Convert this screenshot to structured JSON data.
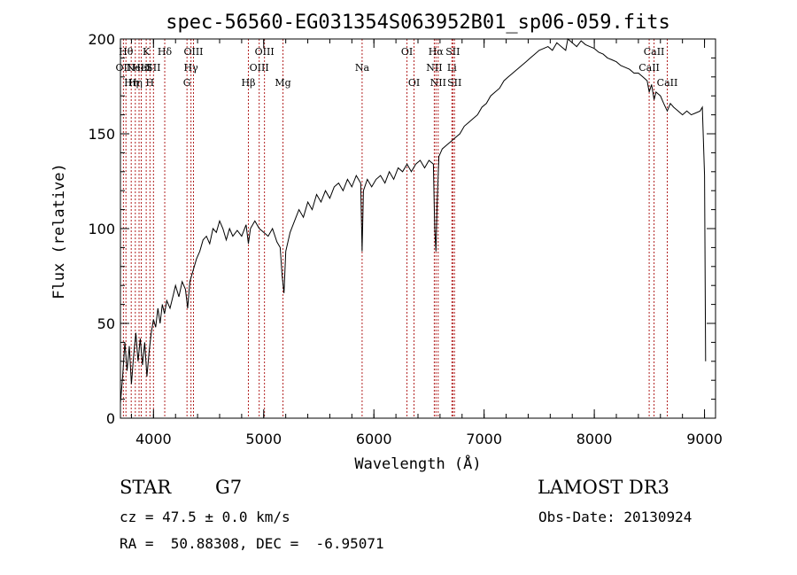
{
  "chart_data": {
    "type": "line",
    "title": "spec-56560-EG031354S063952B01_sp06-059.fits",
    "xlabel": "Wavelength (Å)",
    "ylabel": "Flux (relative)",
    "xlim": [
      3700,
      9100
    ],
    "ylim": [
      0,
      200
    ],
    "xticks": [
      4000,
      5000,
      6000,
      7000,
      8000,
      9000
    ],
    "xtick_labels": [
      "4000",
      "5000",
      "6000",
      "7000",
      "8000",
      "9000"
    ],
    "yticks": [
      0,
      50,
      100,
      150,
      200
    ],
    "ytick_labels": [
      "0",
      "50",
      "100",
      "150",
      "200"
    ],
    "series": [
      {
        "name": "spectrum",
        "points": [
          [
            3700,
            8
          ],
          [
            3720,
            22
          ],
          [
            3740,
            40
          ],
          [
            3760,
            25
          ],
          [
            3780,
            38
          ],
          [
            3800,
            18
          ],
          [
            3820,
            33
          ],
          [
            3840,
            45
          ],
          [
            3860,
            30
          ],
          [
            3880,
            42
          ],
          [
            3900,
            28
          ],
          [
            3920,
            40
          ],
          [
            3940,
            22
          ],
          [
            3960,
            35
          ],
          [
            3980,
            45
          ],
          [
            4000,
            52
          ],
          [
            4020,
            48
          ],
          [
            4040,
            58
          ],
          [
            4060,
            50
          ],
          [
            4080,
            60
          ],
          [
            4100,
            55
          ],
          [
            4120,
            62
          ],
          [
            4150,
            58
          ],
          [
            4180,
            65
          ],
          [
            4200,
            70
          ],
          [
            4230,
            64
          ],
          [
            4260,
            72
          ],
          [
            4290,
            68
          ],
          [
            4310,
            58
          ],
          [
            4330,
            72
          ],
          [
            4360,
            78
          ],
          [
            4390,
            84
          ],
          [
            4420,
            88
          ],
          [
            4450,
            94
          ],
          [
            4480,
            96
          ],
          [
            4510,
            92
          ],
          [
            4540,
            100
          ],
          [
            4570,
            98
          ],
          [
            4600,
            104
          ],
          [
            4630,
            100
          ],
          [
            4660,
            94
          ],
          [
            4690,
            100
          ],
          [
            4720,
            96
          ],
          [
            4760,
            99
          ],
          [
            4800,
            96
          ],
          [
            4840,
            102
          ],
          [
            4861,
            92
          ],
          [
            4880,
            100
          ],
          [
            4920,
            104
          ],
          [
            4960,
            100
          ],
          [
            5000,
            98
          ],
          [
            5040,
            96
          ],
          [
            5080,
            100
          ],
          [
            5120,
            93
          ],
          [
            5150,
            90
          ],
          [
            5167,
            75
          ],
          [
            5184,
            66
          ],
          [
            5200,
            88
          ],
          [
            5240,
            98
          ],
          [
            5280,
            104
          ],
          [
            5320,
            110
          ],
          [
            5360,
            106
          ],
          [
            5400,
            114
          ],
          [
            5440,
            110
          ],
          [
            5480,
            118
          ],
          [
            5520,
            114
          ],
          [
            5560,
            120
          ],
          [
            5600,
            116
          ],
          [
            5640,
            122
          ],
          [
            5680,
            124
          ],
          [
            5720,
            120
          ],
          [
            5760,
            126
          ],
          [
            5800,
            122
          ],
          [
            5840,
            128
          ],
          [
            5880,
            124
          ],
          [
            5893,
            88
          ],
          [
            5905,
            120
          ],
          [
            5940,
            126
          ],
          [
            5980,
            122
          ],
          [
            6020,
            126
          ],
          [
            6060,
            128
          ],
          [
            6100,
            124
          ],
          [
            6140,
            130
          ],
          [
            6180,
            126
          ],
          [
            6220,
            132
          ],
          [
            6260,
            130
          ],
          [
            6300,
            134
          ],
          [
            6340,
            130
          ],
          [
            6380,
            134
          ],
          [
            6420,
            136
          ],
          [
            6460,
            132
          ],
          [
            6500,
            136
          ],
          [
            6540,
            134
          ],
          [
            6552,
            100
          ],
          [
            6563,
            88
          ],
          [
            6572,
            110
          ],
          [
            6590,
            138
          ],
          [
            6620,
            142
          ],
          [
            6660,
            144
          ],
          [
            6700,
            146
          ],
          [
            6740,
            148
          ],
          [
            6780,
            150
          ],
          [
            6820,
            154
          ],
          [
            6860,
            156
          ],
          [
            6900,
            158
          ],
          [
            6940,
            160
          ],
          [
            6980,
            164
          ],
          [
            7020,
            166
          ],
          [
            7060,
            170
          ],
          [
            7100,
            172
          ],
          [
            7140,
            174
          ],
          [
            7180,
            178
          ],
          [
            7220,
            180
          ],
          [
            7260,
            182
          ],
          [
            7300,
            184
          ],
          [
            7340,
            186
          ],
          [
            7380,
            188
          ],
          [
            7420,
            190
          ],
          [
            7460,
            192
          ],
          [
            7500,
            194
          ],
          [
            7540,
            195
          ],
          [
            7580,
            196
          ],
          [
            7620,
            194
          ],
          [
            7660,
            198
          ],
          [
            7700,
            196
          ],
          [
            7740,
            194
          ],
          [
            7760,
            200
          ],
          [
            7800,
            198
          ],
          [
            7840,
            196
          ],
          [
            7880,
            199
          ],
          [
            7920,
            197
          ],
          [
            7960,
            196
          ],
          [
            8000,
            195
          ],
          [
            8040,
            193
          ],
          [
            8080,
            192
          ],
          [
            8120,
            190
          ],
          [
            8160,
            189
          ],
          [
            8200,
            188
          ],
          [
            8240,
            186
          ],
          [
            8280,
            185
          ],
          [
            8320,
            184
          ],
          [
            8360,
            182
          ],
          [
            8400,
            182
          ],
          [
            8440,
            180
          ],
          [
            8480,
            178
          ],
          [
            8498,
            172
          ],
          [
            8520,
            176
          ],
          [
            8542,
            168
          ],
          [
            8560,
            172
          ],
          [
            8600,
            170
          ],
          [
            8630,
            166
          ],
          [
            8662,
            162
          ],
          [
            8690,
            166
          ],
          [
            8720,
            164
          ],
          [
            8760,
            162
          ],
          [
            8800,
            160
          ],
          [
            8840,
            162
          ],
          [
            8880,
            160
          ],
          [
            8920,
            161
          ],
          [
            8960,
            162
          ],
          [
            8980,
            164
          ],
          [
            9000,
            128
          ],
          [
            9010,
            30
          ]
        ]
      }
    ],
    "lines": [
      {
        "wavelength": 3727,
        "label": "OII",
        "row": 1
      },
      {
        "wavelength": 3750,
        "label": "Hθ",
        "row": 0
      },
      {
        "wavelength": 3798,
        "label": "Hη",
        "row": 2
      },
      {
        "wavelength": 3835,
        "label": "Hη",
        "row": 2
      },
      {
        "wavelength": 3869,
        "label": "NeIII",
        "row": 1
      },
      {
        "wavelength": 3889,
        "label": "HeI",
        "row": 1
      },
      {
        "wavelength": 3934,
        "label": "K",
        "row": 0
      },
      {
        "wavelength": 3968,
        "label": "H",
        "row": 2
      },
      {
        "wavelength": 4000,
        "label": "SII",
        "row": 1
      },
      {
        "wavelength": 4102,
        "label": "Hδ",
        "row": 0
      },
      {
        "wavelength": 4304,
        "label": "G",
        "row": 2
      },
      {
        "wavelength": 4340,
        "label": "Hγ",
        "row": 1
      },
      {
        "wavelength": 4363,
        "label": "OIII",
        "row": 0
      },
      {
        "wavelength": 4861,
        "label": "Hβ",
        "row": 2
      },
      {
        "wavelength": 4959,
        "label": "OIII",
        "row": 1
      },
      {
        "wavelength": 5007,
        "label": "OIII",
        "row": 0
      },
      {
        "wavelength": 5175,
        "label": "Mg",
        "row": 2
      },
      {
        "wavelength": 5893,
        "label": "Na",
        "row": 1
      },
      {
        "wavelength": 6300,
        "label": "OI",
        "row": 0
      },
      {
        "wavelength": 6364,
        "label": "OI",
        "row": 2
      },
      {
        "wavelength": 6548,
        "label": "NII",
        "row": 1
      },
      {
        "wavelength": 6563,
        "label": "Hα",
        "row": 0
      },
      {
        "wavelength": 6583,
        "label": "NII",
        "row": 2
      },
      {
        "wavelength": 6708,
        "label": "Li",
        "row": 1
      },
      {
        "wavelength": 6716,
        "label": "SII",
        "row": 0
      },
      {
        "wavelength": 6731,
        "label": "SII",
        "row": 2
      },
      {
        "wavelength": 8498,
        "label": "CaII",
        "row": 1
      },
      {
        "wavelength": 8542,
        "label": "CaII",
        "row": 0
      },
      {
        "wavelength": 8662,
        "label": "CaII",
        "row": 2
      }
    ],
    "line_color": "#000000",
    "marker_color": "#b22222"
  },
  "footer": {
    "object_class": "STAR",
    "subclass": "G7",
    "survey": "LAMOST DR3",
    "cz": "cz = 47.5 ± 0.0 km/s",
    "obs_date": "Obs-Date: 20130924",
    "radec": "RA =  50.88308, DEC =  -6.95071"
  }
}
